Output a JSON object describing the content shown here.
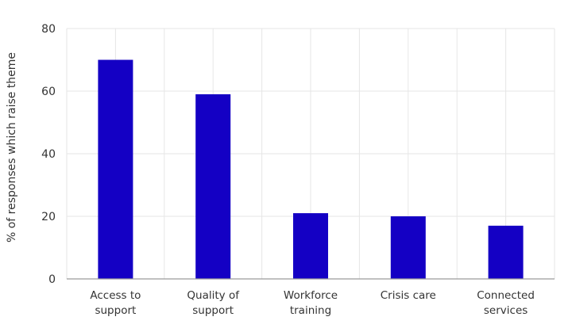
{
  "chart_data": {
    "type": "bar",
    "categories": [
      [
        "Access to",
        "support"
      ],
      [
        "Quality of",
        "support"
      ],
      [
        "Workforce",
        "training"
      ],
      [
        "Crisis care"
      ],
      [
        "Connected",
        "services"
      ]
    ],
    "values": [
      70,
      59,
      21,
      20,
      17
    ],
    "ylabel": "% of responses which raise theme",
    "xlabel": "",
    "ylim": [
      0,
      80
    ],
    "yticks": [
      0,
      20,
      40,
      60,
      80
    ],
    "grid": true,
    "colors": {
      "bar": "#1400c4",
      "grid": "#e6e6e6",
      "axis": "#9a9a9a"
    }
  }
}
